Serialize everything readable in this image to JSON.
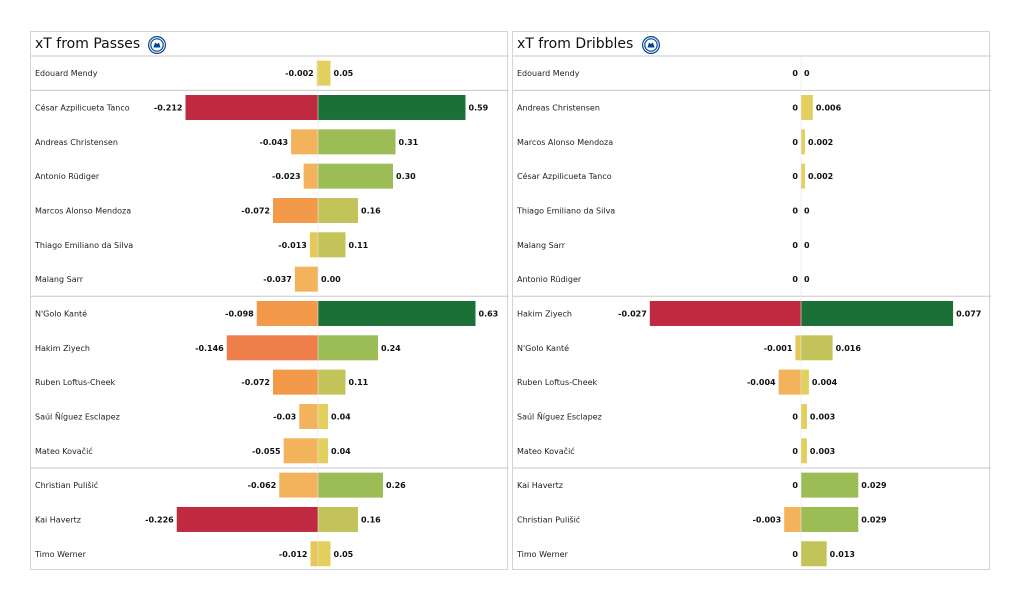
{
  "chart_data": [
    {
      "type": "bar",
      "title": "xT from Passes",
      "xlim": [
        -0.25,
        0.7
      ],
      "groups": [
        1,
        6,
        5,
        3
      ],
      "players": [
        {
          "name": "Edouard Mendy",
          "neg": -0.002,
          "neg_label": "-0.002",
          "pos": 0.05,
          "pos_label": "0.05"
        },
        {
          "name": "César Azpilicueta Tanco",
          "neg": -0.212,
          "neg_label": "-0.212",
          "pos": 0.59,
          "pos_label": "0.59"
        },
        {
          "name": "Andreas Christensen",
          "neg": -0.043,
          "neg_label": "-0.043",
          "pos": 0.31,
          "pos_label": "0.31"
        },
        {
          "name": "Antonio Rüdiger",
          "neg": -0.023,
          "neg_label": "-0.023",
          "pos": 0.3,
          "pos_label": "0.30"
        },
        {
          "name": "Marcos  Alonso Mendoza",
          "neg": -0.072,
          "neg_label": "-0.072",
          "pos": 0.16,
          "pos_label": "0.16"
        },
        {
          "name": "Thiago Emiliano da Silva",
          "neg": -0.013,
          "neg_label": "-0.013",
          "pos": 0.11,
          "pos_label": "0.11"
        },
        {
          "name": "Malang Sarr",
          "neg": -0.037,
          "neg_label": "-0.037",
          "pos": 0.0,
          "pos_label": "0.00"
        },
        {
          "name": "N'Golo Kanté",
          "neg": -0.098,
          "neg_label": "-0.098",
          "pos": 0.63,
          "pos_label": "0.63"
        },
        {
          "name": "Hakim Ziyech",
          "neg": -0.146,
          "neg_label": "-0.146",
          "pos": 0.24,
          "pos_label": "0.24"
        },
        {
          "name": "Ruben Loftus-Cheek",
          "neg": -0.072,
          "neg_label": "-0.072",
          "pos": 0.11,
          "pos_label": "0.11"
        },
        {
          "name": "Saúl Ñíguez Esclapez",
          "neg": -0.03,
          "neg_label": "-0.03",
          "pos": 0.04,
          "pos_label": "0.04"
        },
        {
          "name": "Mateo Kovačić",
          "neg": -0.055,
          "neg_label": "-0.055",
          "pos": 0.04,
          "pos_label": "0.04"
        },
        {
          "name": "Christian Pulišić",
          "neg": -0.062,
          "neg_label": "-0.062",
          "pos": 0.26,
          "pos_label": "0.26"
        },
        {
          "name": "Kai Havertz",
          "neg": -0.226,
          "neg_label": "-0.226",
          "pos": 0.16,
          "pos_label": "0.16"
        },
        {
          "name": "Timo Werner",
          "neg": -0.012,
          "neg_label": "-0.012",
          "pos": 0.05,
          "pos_label": "0.05"
        }
      ]
    },
    {
      "type": "bar",
      "title": "xT from Dribbles",
      "xlim": [
        -0.03,
        0.09
      ],
      "groups": [
        1,
        6,
        5,
        3
      ],
      "players": [
        {
          "name": "Edouard Mendy",
          "neg": 0,
          "neg_label": "0",
          "pos": 0,
          "pos_label": "0"
        },
        {
          "name": "Andreas Christensen",
          "neg": 0,
          "neg_label": "0",
          "pos": 0.006,
          "pos_label": "0.006"
        },
        {
          "name": "Marcos  Alonso Mendoza",
          "neg": 0,
          "neg_label": "0",
          "pos": 0.002,
          "pos_label": "0.002"
        },
        {
          "name": "César Azpilicueta Tanco",
          "neg": 0,
          "neg_label": "0",
          "pos": 0.002,
          "pos_label": "0.002"
        },
        {
          "name": "Thiago Emiliano da Silva",
          "neg": 0,
          "neg_label": "0",
          "pos": 0,
          "pos_label": "0"
        },
        {
          "name": "Malang Sarr",
          "neg": 0,
          "neg_label": "0",
          "pos": 0,
          "pos_label": "0"
        },
        {
          "name": "Antonio Rüdiger",
          "neg": 0,
          "neg_label": "0",
          "pos": 0,
          "pos_label": "0"
        },
        {
          "name": "Hakim Ziyech",
          "neg": -0.027,
          "neg_label": "-0.027",
          "pos": 0.077,
          "pos_label": "0.077"
        },
        {
          "name": "N'Golo Kanté",
          "neg": -0.001,
          "neg_label": "-0.001",
          "pos": 0.016,
          "pos_label": "0.016"
        },
        {
          "name": "Ruben Loftus-Cheek",
          "neg": -0.004,
          "neg_label": "-0.004",
          "pos": 0.004,
          "pos_label": "0.004"
        },
        {
          "name": "Saúl Ñíguez Esclapez",
          "neg": 0,
          "neg_label": "0",
          "pos": 0.003,
          "pos_label": "0.003"
        },
        {
          "name": "Mateo Kovačić",
          "neg": 0,
          "neg_label": "0",
          "pos": 0.003,
          "pos_label": "0.003"
        },
        {
          "name": "Kai Havertz",
          "neg": 0,
          "neg_label": "0",
          "pos": 0.029,
          "pos_label": "0.029"
        },
        {
          "name": "Christian Pulišić",
          "neg": -0.003,
          "neg_label": "-0.003",
          "pos": 0.029,
          "pos_label": "0.029"
        },
        {
          "name": "Timo Werner",
          "neg": 0,
          "neg_label": "0",
          "pos": 0.013,
          "pos_label": "0.013"
        }
      ]
    }
  ],
  "crest": {
    "icon": "chelsea-crest-icon",
    "color": "#034694"
  },
  "colors": {
    "neg_scale": [
      "#e6c75a",
      "#f3b35c",
      "#f39a4a",
      "#ef7f4a",
      "#de5a46",
      "#bf2a40"
    ],
    "pos_scale": [
      "#e3cf5d",
      "#c2c45a",
      "#9cbc56",
      "#75ad51",
      "#4c9a4a",
      "#1b7038"
    ],
    "separator": "#c8c8c8"
  }
}
